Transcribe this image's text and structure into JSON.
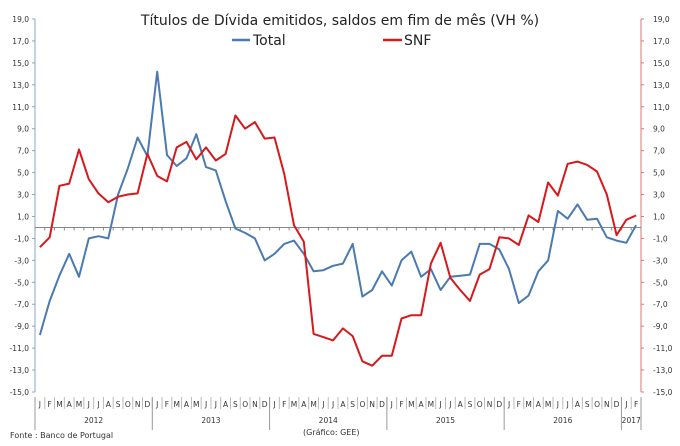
{
  "chart_data": {
    "type": "line",
    "title": "Títulos de Dívida emitidos, saldos em fim de mês  (VH %)",
    "source": "Fonte : Banco de Portugal",
    "credit": "(Gráfico: GEE)",
    "ylim": [
      -15,
      19
    ],
    "yticks": [
      "19,0",
      "17,0",
      "15,0",
      "13,0",
      "11,0",
      "9,0",
      "7,0",
      "5,0",
      "3,0",
      "1,0",
      "-1,0",
      "-3,0",
      "-5,0",
      "-7,0",
      "-9,0",
      "-11,0",
      "-13,0",
      "-15,0"
    ],
    "ytick_values": [
      19,
      17,
      15,
      13,
      11,
      9,
      7,
      5,
      3,
      1,
      -1,
      -3,
      -5,
      -7,
      -9,
      -11,
      -13,
      -15
    ],
    "months": [
      "J",
      "F",
      "M",
      "A",
      "M",
      "J",
      "J",
      "A",
      "S",
      "O",
      "N",
      "D",
      "J",
      "F",
      "M",
      "A",
      "M",
      "J",
      "J",
      "A",
      "S",
      "O",
      "N",
      "D",
      "J",
      "F",
      "M",
      "A",
      "M",
      "J",
      "J",
      "A",
      "S",
      "O",
      "N",
      "D",
      "J",
      "F",
      "M",
      "A",
      "M",
      "J",
      "J",
      "A",
      "S",
      "O",
      "N",
      "D",
      "J",
      "F",
      "M",
      "A",
      "M",
      "J",
      "J",
      "A",
      "S",
      "O",
      "N",
      "D",
      "J",
      "F"
    ],
    "years": [
      {
        "label": "2012",
        "months": 12
      },
      {
        "label": "2013",
        "months": 12
      },
      {
        "label": "2014",
        "months": 12
      },
      {
        "label": "2015",
        "months": 12
      },
      {
        "label": "2016",
        "months": 12
      },
      {
        "label": "2017",
        "months": 2
      }
    ],
    "legend_position": "top-center",
    "series": [
      {
        "name": "Total",
        "color": "#4a7ab0",
        "values": [
          -9.8,
          -6.7,
          -4.4,
          -2.4,
          -4.5,
          -1.0,
          -0.8,
          -1.0,
          3.0,
          5.4,
          8.2,
          6.5,
          14.2,
          6.6,
          5.6,
          6.3,
          8.5,
          5.5,
          5.2,
          2.4,
          -0.1,
          -0.5,
          -1.0,
          -3.0,
          -2.4,
          -1.5,
          -1.2,
          -2.4,
          -4.0,
          -3.9,
          -3.5,
          -3.3,
          -1.5,
          -6.3,
          -5.7,
          -4.0,
          -5.3,
          -3.0,
          -2.2,
          -4.5,
          -3.8,
          -5.7,
          -4.5,
          -4.4,
          -4.3,
          -1.5,
          -1.5,
          -2.0,
          -3.8,
          -6.9,
          -6.2,
          -4.0,
          -3.0,
          1.5,
          0.8,
          2.1,
          0.7,
          0.8,
          -0.9,
          -1.2,
          -1.4,
          0.2
        ]
      },
      {
        "name": "SNF",
        "color": "#d7191c",
        "values": [
          -1.8,
          -0.9,
          3.8,
          4.0,
          7.1,
          4.4,
          3.1,
          2.3,
          2.8,
          3.0,
          3.1,
          6.7,
          4.7,
          4.2,
          7.3,
          7.8,
          6.2,
          7.3,
          6.1,
          6.7,
          10.2,
          9.0,
          9.6,
          8.1,
          8.2,
          4.9,
          0.2,
          -1.3,
          -9.7,
          -10.0,
          -10.3,
          -9.2,
          -9.9,
          -12.2,
          -12.6,
          -11.7,
          -11.7,
          -8.3,
          -8.0,
          -8.0,
          -3.3,
          -1.4,
          -4.6,
          -5.7,
          -6.7,
          -4.3,
          -3.8,
          -0.9,
          -1.0,
          -1.6,
          1.1,
          0.5,
          4.1,
          2.9,
          5.8,
          6.0,
          5.7,
          5.1,
          3.0,
          -0.7,
          0.7,
          1.1
        ]
      }
    ]
  }
}
